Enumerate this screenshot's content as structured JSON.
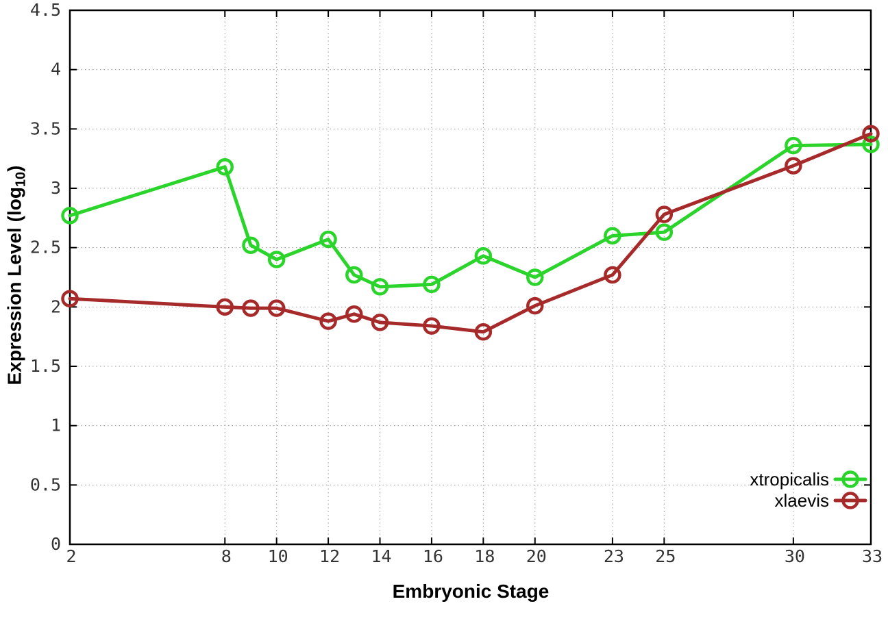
{
  "chart_data": {
    "type": "line",
    "title": "",
    "xlabel": "Embryonic Stage",
    "ylabel": "Expression Level (log10)",
    "ylabel_parts": {
      "prefix": "Expression Level (log",
      "subscript": "10",
      "suffix": ")"
    },
    "x": [
      2,
      8,
      9,
      10,
      12,
      13,
      14,
      16,
      18,
      20,
      23,
      25,
      30,
      33
    ],
    "series": [
      {
        "name": "xtropicalis",
        "color": "#2bd42b",
        "values": [
          2.77,
          3.18,
          2.52,
          2.4,
          2.57,
          2.27,
          2.17,
          2.19,
          2.43,
          2.25,
          2.6,
          2.63,
          3.36,
          3.37
        ]
      },
      {
        "name": "xlaevis",
        "color": "#a62a2a",
        "values": [
          2.07,
          2.0,
          1.99,
          1.99,
          1.88,
          1.94,
          1.87,
          1.84,
          1.79,
          2.01,
          2.27,
          2.78,
          3.19,
          3.46
        ]
      }
    ],
    "xticks": [
      2,
      8,
      10,
      12,
      14,
      16,
      18,
      20,
      23,
      25,
      30,
      33
    ],
    "yticks": [
      0,
      0.5,
      1,
      1.5,
      2,
      2.5,
      3,
      3.5,
      4,
      4.5
    ],
    "xlim": [
      2,
      33
    ],
    "ylim": [
      0,
      4.5
    ],
    "grid": true,
    "legend_position": "inside-bottom-right",
    "marker": "open-circle",
    "colors": {
      "axis": "#000000",
      "grid": "#999999",
      "tick_label": "#333333",
      "legend_text": "#000000"
    }
  }
}
